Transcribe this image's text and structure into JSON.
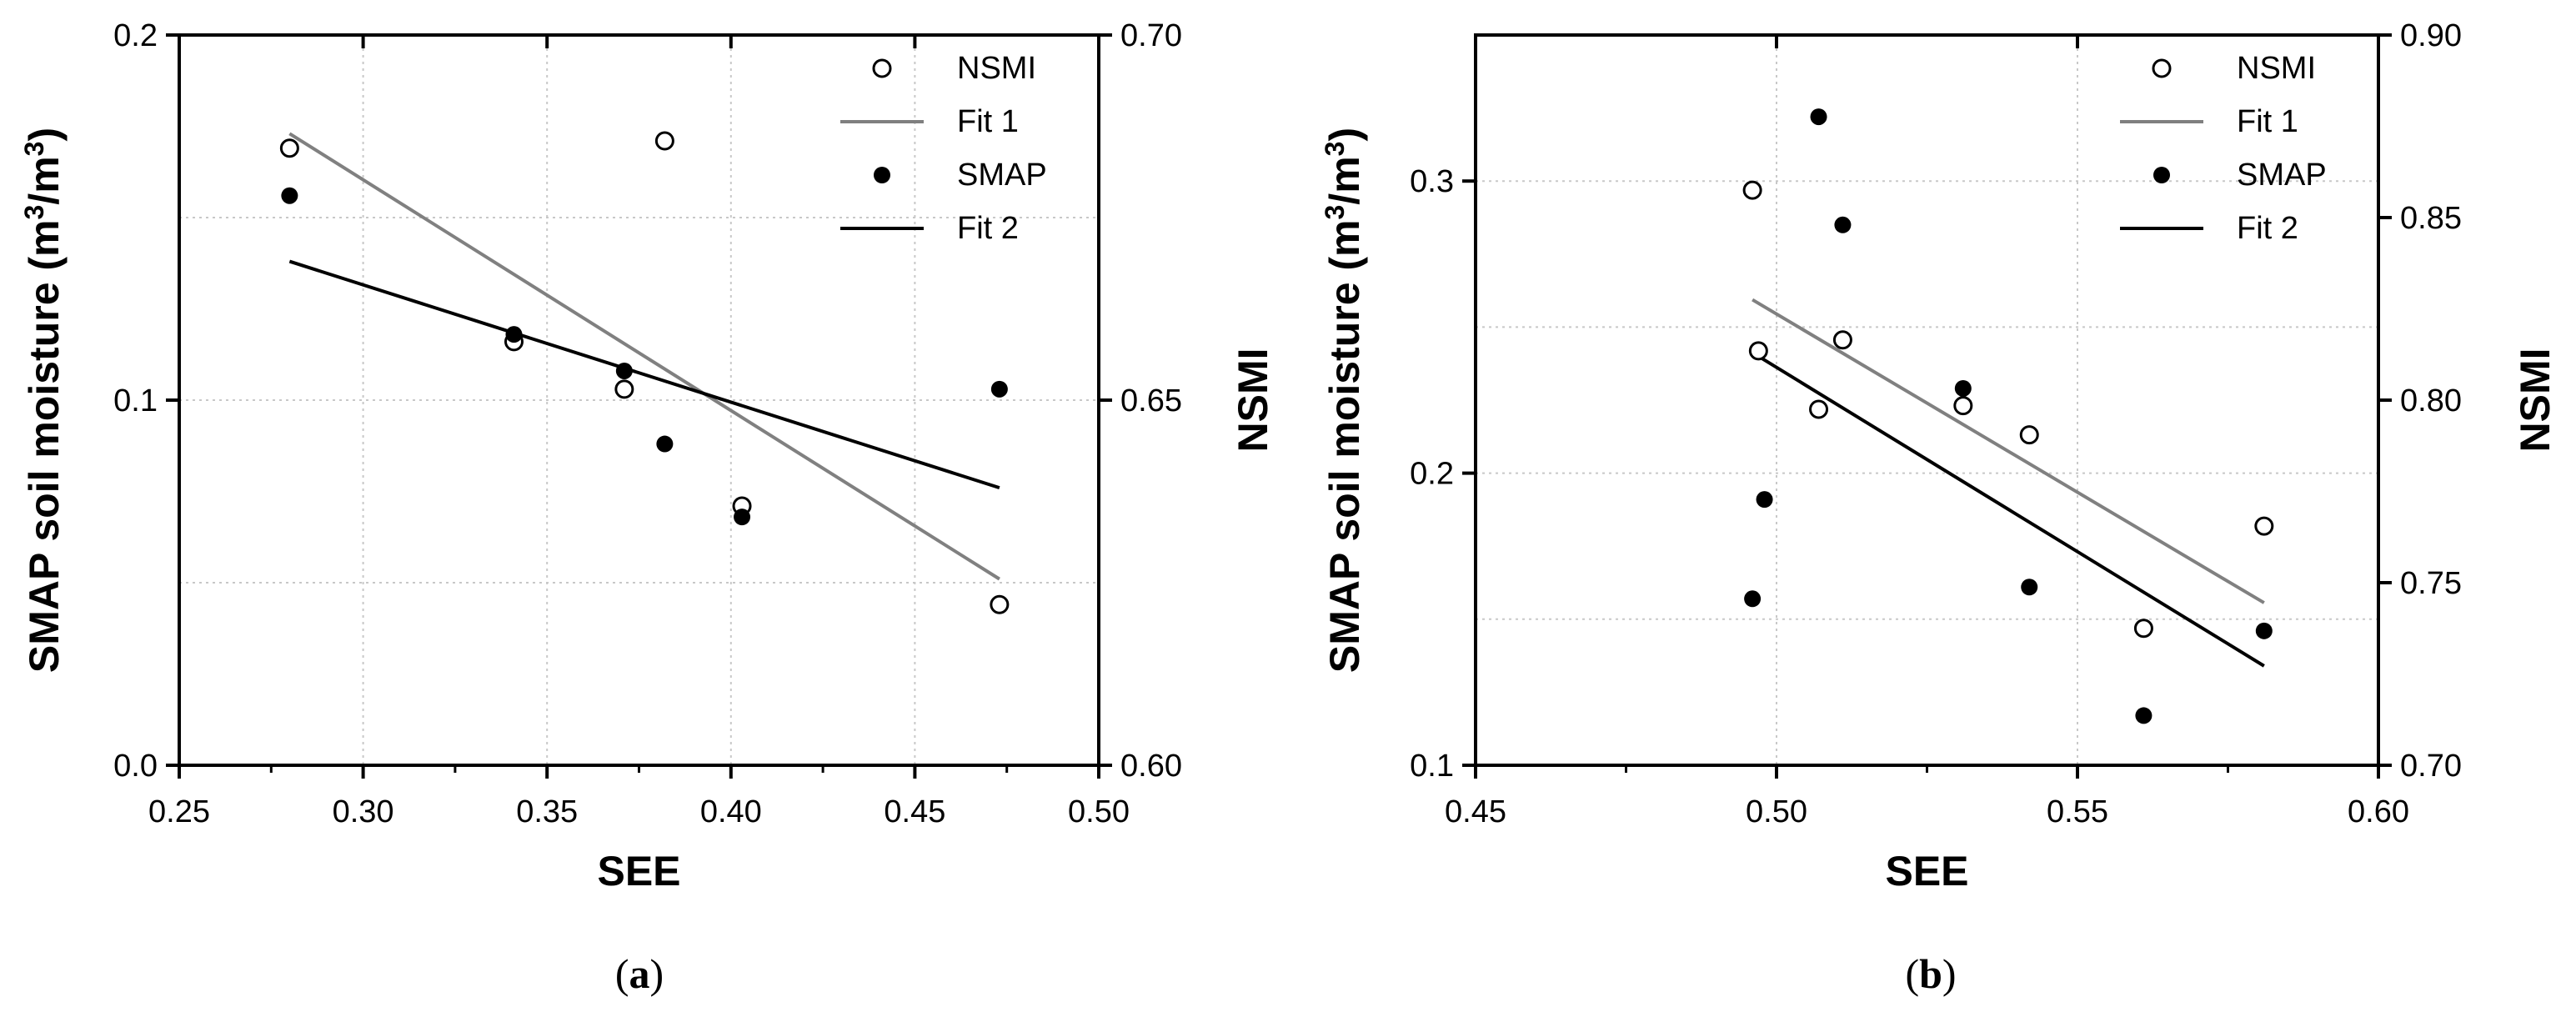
{
  "chart_data": [
    {
      "type": "scatter",
      "panel_label": "(a)",
      "panel_label_parts": [
        "(",
        "a",
        ")"
      ],
      "xlabel": "SEE",
      "ylabel": "SMAP soil moisture (m3/m3)",
      "ylabel_parts": [
        "SMAP soil moisture (m",
        "3",
        "/m",
        "3",
        ")"
      ],
      "y2label": "NSMI",
      "xlim": [
        0.25,
        0.5
      ],
      "ylim": [
        0.0,
        0.2
      ],
      "y2lim": [
        0.6,
        0.7
      ],
      "xticks": [
        "0.25",
        "0.30",
        "0.35",
        "0.40",
        "0.45",
        "0.50"
      ],
      "yticks": [
        "0.0",
        "0.1",
        "0.2"
      ],
      "y2ticks": [
        "0.60",
        "0.65",
        "0.70"
      ],
      "grid": true,
      "legend_position": "top-right",
      "legend": [
        "NSMI",
        "Fit 1",
        "SMAP",
        "Fit 2"
      ],
      "series": [
        {
          "name": "NSMI",
          "axis": "right",
          "marker": "open-circle",
          "x": [
            0.28,
            0.341,
            0.371,
            0.382,
            0.403,
            0.473
          ],
          "y": [
            0.6845,
            0.658,
            0.6515,
            0.6855,
            0.6355,
            0.622
          ]
        },
        {
          "name": "Fit 1",
          "axis": "right",
          "style": "line",
          "color": "#808080",
          "x": [
            0.28,
            0.473
          ],
          "y": [
            0.6865,
            0.6255
          ]
        },
        {
          "name": "SMAP",
          "axis": "left",
          "marker": "filled-circle",
          "x": [
            0.28,
            0.341,
            0.371,
            0.382,
            0.403,
            0.473
          ],
          "y": [
            0.156,
            0.118,
            0.108,
            0.088,
            0.068,
            0.103
          ]
        },
        {
          "name": "Fit 2",
          "axis": "left",
          "style": "line",
          "color": "#000000",
          "x": [
            0.28,
            0.473
          ],
          "y": [
            0.138,
            0.076
          ]
        }
      ]
    },
    {
      "type": "scatter",
      "panel_label": "(b)",
      "panel_label_parts": [
        "(",
        "b",
        ")"
      ],
      "xlabel": "SEE",
      "ylabel": "SMAP soil moisture (m3/m3)",
      "ylabel_parts": [
        "SMAP soil moisture (m",
        "3",
        "/m",
        "3",
        ")"
      ],
      "y2label": "NSMI",
      "xlim": [
        0.45,
        0.6
      ],
      "ylim": [
        0.1,
        0.35
      ],
      "y2lim": [
        0.7,
        0.9
      ],
      "xticks": [
        "0.45",
        "0.50",
        "0.55",
        "0.60"
      ],
      "yticks": [
        "0.1",
        "0.2",
        "0.3"
      ],
      "y2ticks": [
        "0.70",
        "0.75",
        "0.80",
        "0.85",
        "0.90"
      ],
      "grid": true,
      "legend_position": "top-right",
      "legend": [
        "NSMI",
        "Fit 1",
        "SMAP",
        "Fit 2"
      ],
      "series": [
        {
          "name": "NSMI",
          "axis": "right",
          "marker": "open-circle",
          "x": [
            0.496,
            0.497,
            0.507,
            0.511,
            0.531,
            0.542,
            0.561,
            0.581
          ],
          "y": [
            0.8575,
            0.8135,
            0.7975,
            0.8165,
            0.7985,
            0.7905,
            0.7375,
            0.7655
          ]
        },
        {
          "name": "Fit 1",
          "axis": "right",
          "style": "line",
          "color": "#808080",
          "x": [
            0.496,
            0.581
          ],
          "y": [
            0.8275,
            0.7445
          ]
        },
        {
          "name": "SMAP",
          "axis": "left",
          "marker": "filled-circle",
          "x": [
            0.496,
            0.498,
            0.507,
            0.511,
            0.531,
            0.542,
            0.561,
            0.581
          ],
          "y": [
            0.157,
            0.191,
            0.322,
            0.285,
            0.229,
            0.161,
            0.117,
            0.146
          ]
        },
        {
          "name": "Fit 2",
          "axis": "left",
          "style": "line",
          "color": "#000000",
          "x": [
            0.497,
            0.581
          ],
          "y": [
            0.24,
            0.134
          ]
        }
      ]
    }
  ]
}
